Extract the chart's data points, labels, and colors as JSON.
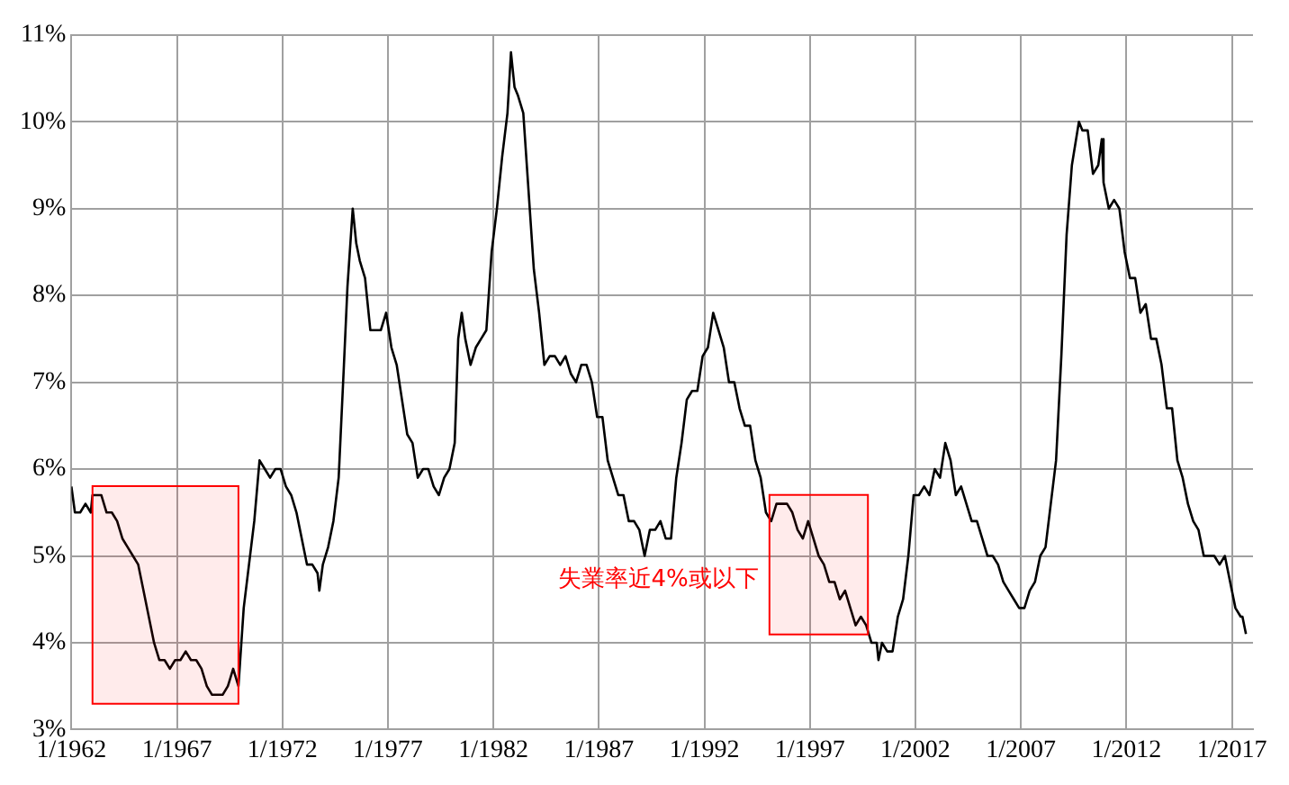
{
  "chart_data": {
    "type": "line",
    "x": [
      "1962-01",
      "1962-03",
      "1962-06",
      "1962-09",
      "1962-12",
      "1963-01",
      "1963-06",
      "1963-09",
      "1963-12",
      "1964-03",
      "1964-06",
      "1964-09",
      "1964-12",
      "1965-03",
      "1965-06",
      "1965-09",
      "1965-12",
      "1966-03",
      "1966-06",
      "1966-09",
      "1966-12",
      "1967-03",
      "1967-06",
      "1967-09",
      "1967-12",
      "1968-03",
      "1968-06",
      "1968-09",
      "1968-12",
      "1969-03",
      "1969-06",
      "1969-09",
      "1969-12",
      "1970-03",
      "1970-06",
      "1970-09",
      "1970-12",
      "1971-03",
      "1971-06",
      "1971-09",
      "1971-12",
      "1972-03",
      "1972-06",
      "1972-09",
      "1972-12",
      "1973-03",
      "1973-06",
      "1973-09",
      "1973-10",
      "1973-12",
      "1974-03",
      "1974-06",
      "1974-09",
      "1974-12",
      "1975-02",
      "1975-05",
      "1975-07",
      "1975-09",
      "1975-12",
      "1976-03",
      "1976-06",
      "1976-09",
      "1976-12",
      "1977-03",
      "1977-06",
      "1977-09",
      "1977-12",
      "1978-03",
      "1978-06",
      "1978-09",
      "1978-12",
      "1979-03",
      "1979-06",
      "1979-09",
      "1979-12",
      "1980-03",
      "1980-05",
      "1980-07",
      "1980-09",
      "1980-12",
      "1981-03",
      "1981-06",
      "1981-09",
      "1981-12",
      "1982-03",
      "1982-06",
      "1982-09",
      "1982-11",
      "1983-01",
      "1983-03",
      "1983-06",
      "1983-09",
      "1983-12",
      "1984-03",
      "1984-06",
      "1984-09",
      "1984-12",
      "1985-03",
      "1985-06",
      "1985-09",
      "1985-12",
      "1986-03",
      "1986-06",
      "1986-09",
      "1986-12",
      "1987-03",
      "1987-06",
      "1987-09",
      "1987-12",
      "1988-03",
      "1988-06",
      "1988-09",
      "1988-12",
      "1989-03",
      "1989-06",
      "1989-09",
      "1989-12",
      "1990-03",
      "1990-06",
      "1990-09",
      "1990-12",
      "1991-03",
      "1991-06",
      "1991-09",
      "1991-12",
      "1992-03",
      "1992-06",
      "1992-09",
      "1992-12",
      "1993-03",
      "1993-06",
      "1993-09",
      "1993-12",
      "1994-03",
      "1994-06",
      "1994-09",
      "1994-12",
      "1995-03",
      "1995-06",
      "1995-09",
      "1995-12",
      "1996-03",
      "1996-06",
      "1996-09",
      "1996-12",
      "1997-03",
      "1997-06",
      "1997-09",
      "1997-12",
      "1998-03",
      "1998-06",
      "1998-09",
      "1998-12",
      "1999-03",
      "1999-06",
      "1999-09",
      "1999-12",
      "2000-03",
      "2000-04",
      "2000-06",
      "2000-09",
      "2000-12",
      "2001-03",
      "2001-06",
      "2001-09",
      "2001-12",
      "2002-03",
      "2002-06",
      "2002-09",
      "2002-12",
      "2003-03",
      "2003-06",
      "2003-09",
      "2003-12",
      "2004-03",
      "2004-06",
      "2004-09",
      "2004-12",
      "2005-03",
      "2005-06",
      "2005-09",
      "2005-12",
      "2006-03",
      "2006-06",
      "2006-09",
      "2006-12",
      "2007-03",
      "2007-06",
      "2007-09",
      "2007-12",
      "2008-03",
      "2008-06",
      "2008-09",
      "2008-12",
      "2009-03",
      "2009-06",
      "2009-10",
      "2009-12",
      "2010-03",
      "2010-06",
      "2010-09",
      "2010-11",
      "2010-12",
      "2011-03",
      "2011-06",
      "2011-09",
      "2011-12",
      "2012-03",
      "2012-06",
      "2012-09",
      "2012-12",
      "2013-03",
      "2013-06",
      "2013-09",
      "2013-12",
      "2014-03",
      "2014-06",
      "2014-09",
      "2014-12",
      "2015-03",
      "2015-06",
      "2015-09",
      "2015-12",
      "2016-03",
      "2016-06",
      "2016-09",
      "2016-12",
      "2017-03",
      "2017-06",
      "2017-07",
      "2017-09"
    ],
    "series": [
      {
        "color": "#000000",
        "values": [
          5.8,
          5.5,
          5.5,
          5.6,
          5.5,
          5.7,
          5.7,
          5.5,
          5.5,
          5.4,
          5.2,
          5.1,
          5.0,
          4.9,
          4.6,
          4.3,
          4.0,
          3.8,
          3.8,
          3.7,
          3.8,
          3.8,
          3.9,
          3.8,
          3.8,
          3.7,
          3.5,
          3.4,
          3.4,
          3.4,
          3.5,
          3.7,
          3.5,
          4.4,
          4.9,
          5.4,
          6.1,
          6.0,
          5.9,
          6.0,
          6.0,
          5.8,
          5.7,
          5.5,
          5.2,
          4.9,
          4.9,
          4.8,
          4.6,
          4.9,
          5.1,
          5.4,
          5.9,
          7.2,
          8.1,
          9.0,
          8.6,
          8.4,
          8.2,
          7.6,
          7.6,
          7.6,
          7.8,
          7.4,
          7.2,
          6.8,
          6.4,
          6.3,
          5.9,
          6.0,
          6.0,
          5.8,
          5.7,
          5.9,
          6.0,
          6.3,
          7.5,
          7.8,
          7.5,
          7.2,
          7.4,
          7.5,
          7.6,
          8.5,
          9.0,
          9.6,
          10.1,
          10.8,
          10.4,
          10.3,
          10.1,
          9.2,
          8.3,
          7.8,
          7.2,
          7.3,
          7.3,
          7.2,
          7.3,
          7.1,
          7.0,
          7.2,
          7.2,
          7.0,
          6.6,
          6.6,
          6.1,
          5.9,
          5.7,
          5.7,
          5.4,
          5.4,
          5.3,
          5.0,
          5.3,
          5.3,
          5.4,
          5.2,
          5.2,
          5.9,
          6.3,
          6.8,
          6.9,
          6.9,
          7.3,
          7.4,
          7.8,
          7.6,
          7.4,
          7.0,
          7.0,
          6.7,
          6.5,
          6.5,
          6.1,
          5.9,
          5.5,
          5.4,
          5.6,
          5.6,
          5.6,
          5.5,
          5.3,
          5.2,
          5.4,
          5.2,
          5.0,
          4.9,
          4.7,
          4.7,
          4.5,
          4.6,
          4.4,
          4.2,
          4.3,
          4.2,
          4.0,
          4.0,
          3.8,
          4.0,
          3.9,
          3.9,
          4.3,
          4.5,
          5.0,
          5.7,
          5.7,
          5.8,
          5.7,
          6.0,
          5.9,
          6.3,
          6.1,
          5.7,
          5.8,
          5.6,
          5.4,
          5.4,
          5.2,
          5.0,
          5.0,
          4.9,
          4.7,
          4.6,
          4.5,
          4.4,
          4.4,
          4.6,
          4.7,
          5.0,
          5.1,
          5.6,
          6.1,
          7.3,
          8.7,
          9.5,
          10.0,
          9.9,
          9.9,
          9.4,
          9.5,
          9.8,
          9.3,
          9.0,
          9.1,
          9.0,
          8.5,
          8.2,
          8.2,
          7.8,
          7.9,
          7.5,
          7.5,
          7.2,
          6.7,
          6.7,
          6.1,
          5.9,
          5.6,
          5.4,
          5.3,
          5.0,
          5.0,
          5.0,
          4.9,
          5.0,
          4.7,
          4.4,
          4.3,
          4.3,
          4.1
        ]
      }
    ],
    "xlim": [
      "1962-01",
      "2018-01"
    ],
    "xticks": [
      {
        "value": "1962-01",
        "label": "1/1962"
      },
      {
        "value": "1967-01",
        "label": "1/1967"
      },
      {
        "value": "1972-01",
        "label": "1/1972"
      },
      {
        "value": "1977-01",
        "label": "1/1977"
      },
      {
        "value": "1982-01",
        "label": "1/1982"
      },
      {
        "value": "1987-01",
        "label": "1/1987"
      },
      {
        "value": "1992-01",
        "label": "1/1992"
      },
      {
        "value": "1997-01",
        "label": "1/1997"
      },
      {
        "value": "2002-01",
        "label": "1/2002"
      },
      {
        "value": "2007-01",
        "label": "1/2007"
      },
      {
        "value": "2012-01",
        "label": "1/2012"
      },
      {
        "value": "2017-01",
        "label": "1/2017"
      }
    ],
    "ylim": [
      3,
      11
    ],
    "yticks": [
      {
        "value": 3,
        "label": "3%"
      },
      {
        "value": 4,
        "label": "4%"
      },
      {
        "value": 5,
        "label": "5%"
      },
      {
        "value": 6,
        "label": "6%"
      },
      {
        "value": 7,
        "label": "7%"
      },
      {
        "value": 8,
        "label": "8%"
      },
      {
        "value": 9,
        "label": "9%"
      },
      {
        "value": 10,
        "label": "10%"
      },
      {
        "value": 11,
        "label": "11%"
      }
    ],
    "bands": [
      {
        "axis": "x",
        "from": "1963-01",
        "to": "1969-12",
        "color": "#ff0000"
      },
      {
        "axis": "x",
        "from": "1995-02",
        "to": "1999-10",
        "color": "#ff0000",
        "label": "失業率近4%或以下"
      }
    ],
    "grid": true,
    "legend": false,
    "marker": "none",
    "line_style": "solid"
  }
}
